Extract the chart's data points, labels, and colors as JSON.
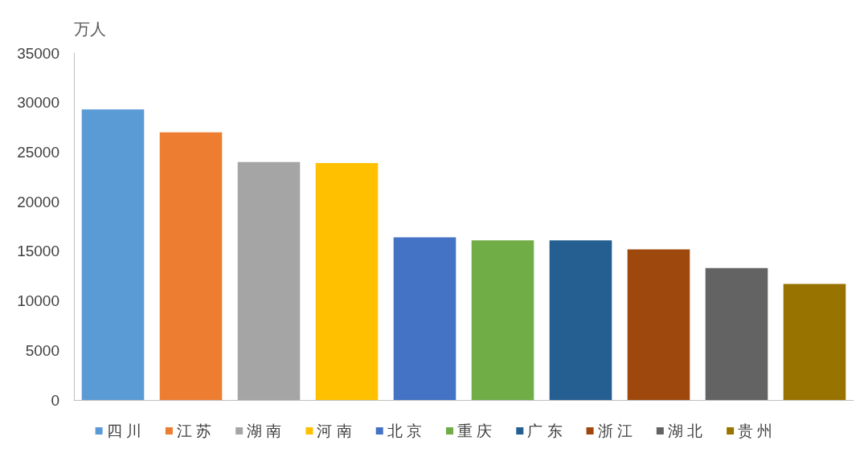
{
  "chart_data": {
    "type": "bar",
    "ylabel": "万人",
    "categories": [
      null,
      null,
      null,
      null,
      null,
      null,
      null,
      null,
      null,
      null
    ],
    "series": [
      {
        "name": "四 川",
        "color": "#5b9bd5",
        "values": [
          29300,
          null,
          null,
          null,
          null,
          null,
          null,
          null,
          null,
          null
        ]
      },
      {
        "name": "江 苏",
        "color": "#ed7d31",
        "values": [
          null,
          27000,
          null,
          null,
          null,
          null,
          null,
          null,
          null,
          null
        ]
      },
      {
        "name": "湖 南",
        "color": "#a5a5a5",
        "values": [
          null,
          null,
          24000,
          null,
          null,
          null,
          null,
          null,
          null,
          null
        ]
      },
      {
        "name": "河 南",
        "color": "#ffc000",
        "values": [
          null,
          null,
          null,
          23900,
          null,
          null,
          null,
          null,
          null,
          null
        ]
      },
      {
        "name": "北 京",
        "color": "#4472c4",
        "values": [
          null,
          null,
          null,
          null,
          16400,
          null,
          null,
          null,
          null,
          null
        ]
      },
      {
        "name": "重 庆",
        "color": "#70ad47",
        "values": [
          null,
          null,
          null,
          null,
          null,
          16100,
          null,
          null,
          null,
          null
        ]
      },
      {
        "name": "广 东",
        "color": "#255e91",
        "values": [
          null,
          null,
          null,
          null,
          null,
          null,
          16100,
          null,
          null,
          null
        ]
      },
      {
        "name": "浙 江",
        "color": "#9e480e",
        "values": [
          null,
          null,
          null,
          null,
          null,
          null,
          null,
          15200,
          null,
          null
        ]
      },
      {
        "name": "湖 北",
        "color": "#636363",
        "values": [
          null,
          null,
          null,
          null,
          null,
          null,
          null,
          null,
          13300,
          null
        ]
      },
      {
        "name": "贵 州",
        "color": "#997300",
        "values": [
          null,
          null,
          null,
          null,
          null,
          null,
          null,
          null,
          null,
          11700
        ]
      }
    ],
    "ylim": [
      0,
      35000
    ],
    "yticks": [
      0,
      5000,
      10000,
      15000,
      20000,
      25000,
      30000,
      35000
    ],
    "legend": "bottom",
    "tick_labels": "y",
    "grid": false
  }
}
